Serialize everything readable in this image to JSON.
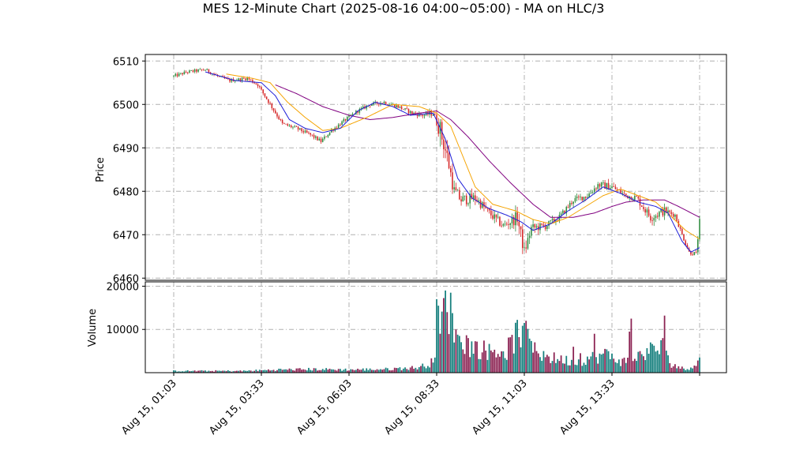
{
  "chart_data": {
    "type": "candlestick",
    "title": "MES 12-Minute Chart (2025-08-16 04:00~05:00) - MA on HLC/3",
    "price_panel": {
      "ylabel": "Price",
      "ylim": [
        6459.5,
        6511.5
      ],
      "yticks": [
        6460,
        6470,
        6480,
        6490,
        6500,
        6510
      ]
    },
    "volume_panel": {
      "ylabel": "Volume",
      "ylim": [
        0,
        21000
      ],
      "yticks": [
        10000,
        20000
      ]
    },
    "xaxis": {
      "tick_labels": [
        "Aug 15, 01:03",
        "Aug 15, 03:33",
        "Aug 15, 06:03",
        "Aug 15, 08:33",
        "Aug 15, 11:03",
        "Aug 15, 13:33"
      ],
      "tick_bar_index": [
        0,
        50,
        100,
        150,
        200,
        250
      ],
      "bar_count": 301
    },
    "grid": true,
    "colors": {
      "up": "#2e8b3c",
      "down": "#d62728",
      "ma_fast": "#1f1fd8",
      "ma_mid": "#f5a300",
      "ma_slow": "#800080",
      "vol_up": "#17807e",
      "vol_down": "#8b2252",
      "grid": "#b0b0b0"
    },
    "price_path_keyframes": [
      [
        0,
        6506.5
      ],
      [
        8,
        6507.5
      ],
      [
        18,
        6508
      ],
      [
        25,
        6506.5
      ],
      [
        32,
        6505.5
      ],
      [
        42,
        6506
      ],
      [
        48,
        6504.5
      ],
      [
        55,
        6500
      ],
      [
        62,
        6495.5
      ],
      [
        70,
        6494.5
      ],
      [
        78,
        6493
      ],
      [
        84,
        6491.5
      ],
      [
        90,
        6494
      ],
      [
        98,
        6496.5
      ],
      [
        105,
        6498.5
      ],
      [
        112,
        6500
      ],
      [
        120,
        6500.5
      ],
      [
        128,
        6499.5
      ],
      [
        136,
        6498
      ],
      [
        142,
        6497.5
      ],
      [
        148,
        6498
      ],
      [
        152,
        6494
      ],
      [
        156,
        6488
      ],
      [
        160,
        6480
      ],
      [
        164,
        6478
      ],
      [
        172,
        6478.5
      ],
      [
        180,
        6475
      ],
      [
        188,
        6472
      ],
      [
        196,
        6474
      ],
      [
        200,
        6466
      ],
      [
        204,
        6471.5
      ],
      [
        212,
        6472
      ],
      [
        220,
        6474
      ],
      [
        228,
        6478
      ],
      [
        236,
        6479
      ],
      [
        242,
        6481.5
      ],
      [
        250,
        6481
      ],
      [
        258,
        6479
      ],
      [
        264,
        6478.5
      ],
      [
        272,
        6474
      ],
      [
        280,
        6475.5
      ],
      [
        286,
        6474.5
      ],
      [
        290,
        6470
      ],
      [
        294,
        6466
      ],
      [
        298,
        6465.5
      ],
      [
        300,
        6473
      ]
    ],
    "volume_keyframes": [
      [
        0,
        400
      ],
      [
        40,
        400
      ],
      [
        60,
        700
      ],
      [
        80,
        800
      ],
      [
        100,
        700
      ],
      [
        120,
        800
      ],
      [
        140,
        1200
      ],
      [
        148,
        2500
      ],
      [
        150,
        6000
      ],
      [
        152,
        16000
      ],
      [
        156,
        13000
      ],
      [
        160,
        9000
      ],
      [
        170,
        6000
      ],
      [
        180,
        5000
      ],
      [
        190,
        5000
      ],
      [
        196,
        9000
      ],
      [
        200,
        8000
      ],
      [
        206,
        5000
      ],
      [
        214,
        3500
      ],
      [
        222,
        3000
      ],
      [
        230,
        2500
      ],
      [
        238,
        3500
      ],
      [
        248,
        4000
      ],
      [
        256,
        2500
      ],
      [
        264,
        3500
      ],
      [
        270,
        5000
      ],
      [
        278,
        5500
      ],
      [
        284,
        2000
      ],
      [
        292,
        700
      ],
      [
        300,
        2500
      ]
    ],
    "volume_spikes": [
      [
        149,
        3500
      ],
      [
        150,
        17000
      ],
      [
        151,
        15500
      ],
      [
        152,
        9000
      ],
      [
        155,
        19000
      ],
      [
        156,
        14000
      ],
      [
        158,
        18500
      ],
      [
        161,
        10000
      ],
      [
        163,
        8500
      ],
      [
        168,
        8000
      ],
      [
        200,
        11500
      ],
      [
        201,
        12000
      ],
      [
        211,
        5000
      ],
      [
        228,
        6000
      ],
      [
        232,
        4500
      ],
      [
        240,
        9000
      ],
      [
        246,
        5500
      ],
      [
        260,
        9500
      ],
      [
        261,
        12500
      ],
      [
        278,
        7500
      ],
      [
        279,
        8000
      ],
      [
        280,
        13200
      ],
      [
        300,
        3500
      ]
    ],
    "ma_fast_keyframes": [
      [
        18,
        6507.5
      ],
      [
        35,
        6505.5
      ],
      [
        50,
        6505
      ],
      [
        58,
        6502
      ],
      [
        66,
        6496.5
      ],
      [
        75,
        6494.5
      ],
      [
        85,
        6493.5
      ],
      [
        95,
        6494.5
      ],
      [
        105,
        6498.5
      ],
      [
        115,
        6500.5
      ],
      [
        125,
        6499.5
      ],
      [
        135,
        6497.5
      ],
      [
        148,
        6498
      ],
      [
        155,
        6492
      ],
      [
        162,
        6483
      ],
      [
        170,
        6478.5
      ],
      [
        180,
        6476
      ],
      [
        190,
        6474.5
      ],
      [
        198,
        6473
      ],
      [
        205,
        6471
      ],
      [
        215,
        6472.5
      ],
      [
        225,
        6475.5
      ],
      [
        235,
        6478
      ],
      [
        245,
        6481
      ],
      [
        255,
        6479.5
      ],
      [
        265,
        6477.5
      ],
      [
        275,
        6476.5
      ],
      [
        282,
        6475
      ],
      [
        290,
        6468.5
      ],
      [
        295,
        6466
      ],
      [
        300,
        6467
      ]
    ],
    "ma_mid_keyframes": [
      [
        30,
        6507
      ],
      [
        45,
        6506
      ],
      [
        55,
        6505
      ],
      [
        65,
        6500.5
      ],
      [
        75,
        6497
      ],
      [
        85,
        6494
      ],
      [
        95,
        6494.5
      ],
      [
        110,
        6497
      ],
      [
        125,
        6500
      ],
      [
        140,
        6499.5
      ],
      [
        150,
        6498
      ],
      [
        158,
        6495
      ],
      [
        165,
        6488
      ],
      [
        172,
        6481
      ],
      [
        182,
        6477
      ],
      [
        195,
        6475.5
      ],
      [
        205,
        6473.5
      ],
      [
        215,
        6472.5
      ],
      [
        225,
        6474
      ],
      [
        235,
        6476.5
      ],
      [
        245,
        6479
      ],
      [
        255,
        6480.5
      ],
      [
        265,
        6479
      ],
      [
        275,
        6477.5
      ],
      [
        283,
        6474.5
      ],
      [
        292,
        6471
      ],
      [
        300,
        6469
      ]
    ],
    "ma_slow_keyframes": [
      [
        58,
        6504.5
      ],
      [
        70,
        6502.5
      ],
      [
        85,
        6499.5
      ],
      [
        100,
        6497.5
      ],
      [
        112,
        6496.5
      ],
      [
        125,
        6497
      ],
      [
        140,
        6498
      ],
      [
        150,
        6498.5
      ],
      [
        158,
        6496.5
      ],
      [
        168,
        6492.5
      ],
      [
        180,
        6487
      ],
      [
        192,
        6482
      ],
      [
        205,
        6477
      ],
      [
        215,
        6474
      ],
      [
        228,
        6474
      ],
      [
        240,
        6475
      ],
      [
        250,
        6476.5
      ],
      [
        258,
        6477.5
      ],
      [
        268,
        6478
      ],
      [
        280,
        6478
      ],
      [
        288,
        6476.5
      ],
      [
        300,
        6474
      ]
    ]
  }
}
